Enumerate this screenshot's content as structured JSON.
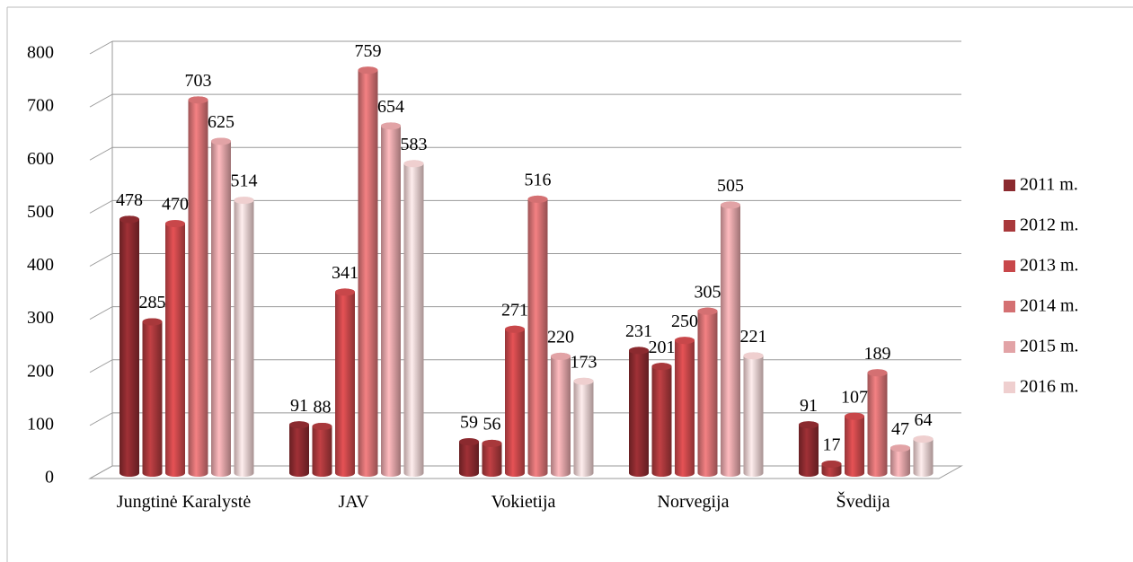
{
  "chart_data": {
    "type": "bar3d",
    "categories": [
      "Jungtinė Karalystė",
      "JAV",
      "Vokietija",
      "Norvegija",
      "Švedija"
    ],
    "series": [
      {
        "name": "2011 m.",
        "color": "#8b2a2f",
        "values": [
          478,
          91,
          59,
          231,
          91
        ]
      },
      {
        "name": "2012 m.",
        "color": "#a8383b",
        "values": [
          285,
          88,
          56,
          201,
          17
        ]
      },
      {
        "name": "2013 m.",
        "color": "#c8474a",
        "values": [
          470,
          341,
          271,
          250,
          107
        ]
      },
      {
        "name": "2014 m.",
        "color": "#d47072",
        "values": [
          703,
          759,
          516,
          305,
          189
        ]
      },
      {
        "name": "2015 m.",
        "color": "#e2a3a6",
        "values": [
          625,
          654,
          220,
          505,
          47
        ]
      },
      {
        "name": "2016 m.",
        "color": "#efcfcf",
        "values": [
          514,
          583,
          173,
          221,
          64
        ]
      }
    ],
    "ylim": [
      0,
      800
    ],
    "yticks": [
      0,
      100,
      200,
      300,
      400,
      500,
      600,
      700,
      800
    ],
    "grid": true,
    "legend": "right"
  }
}
